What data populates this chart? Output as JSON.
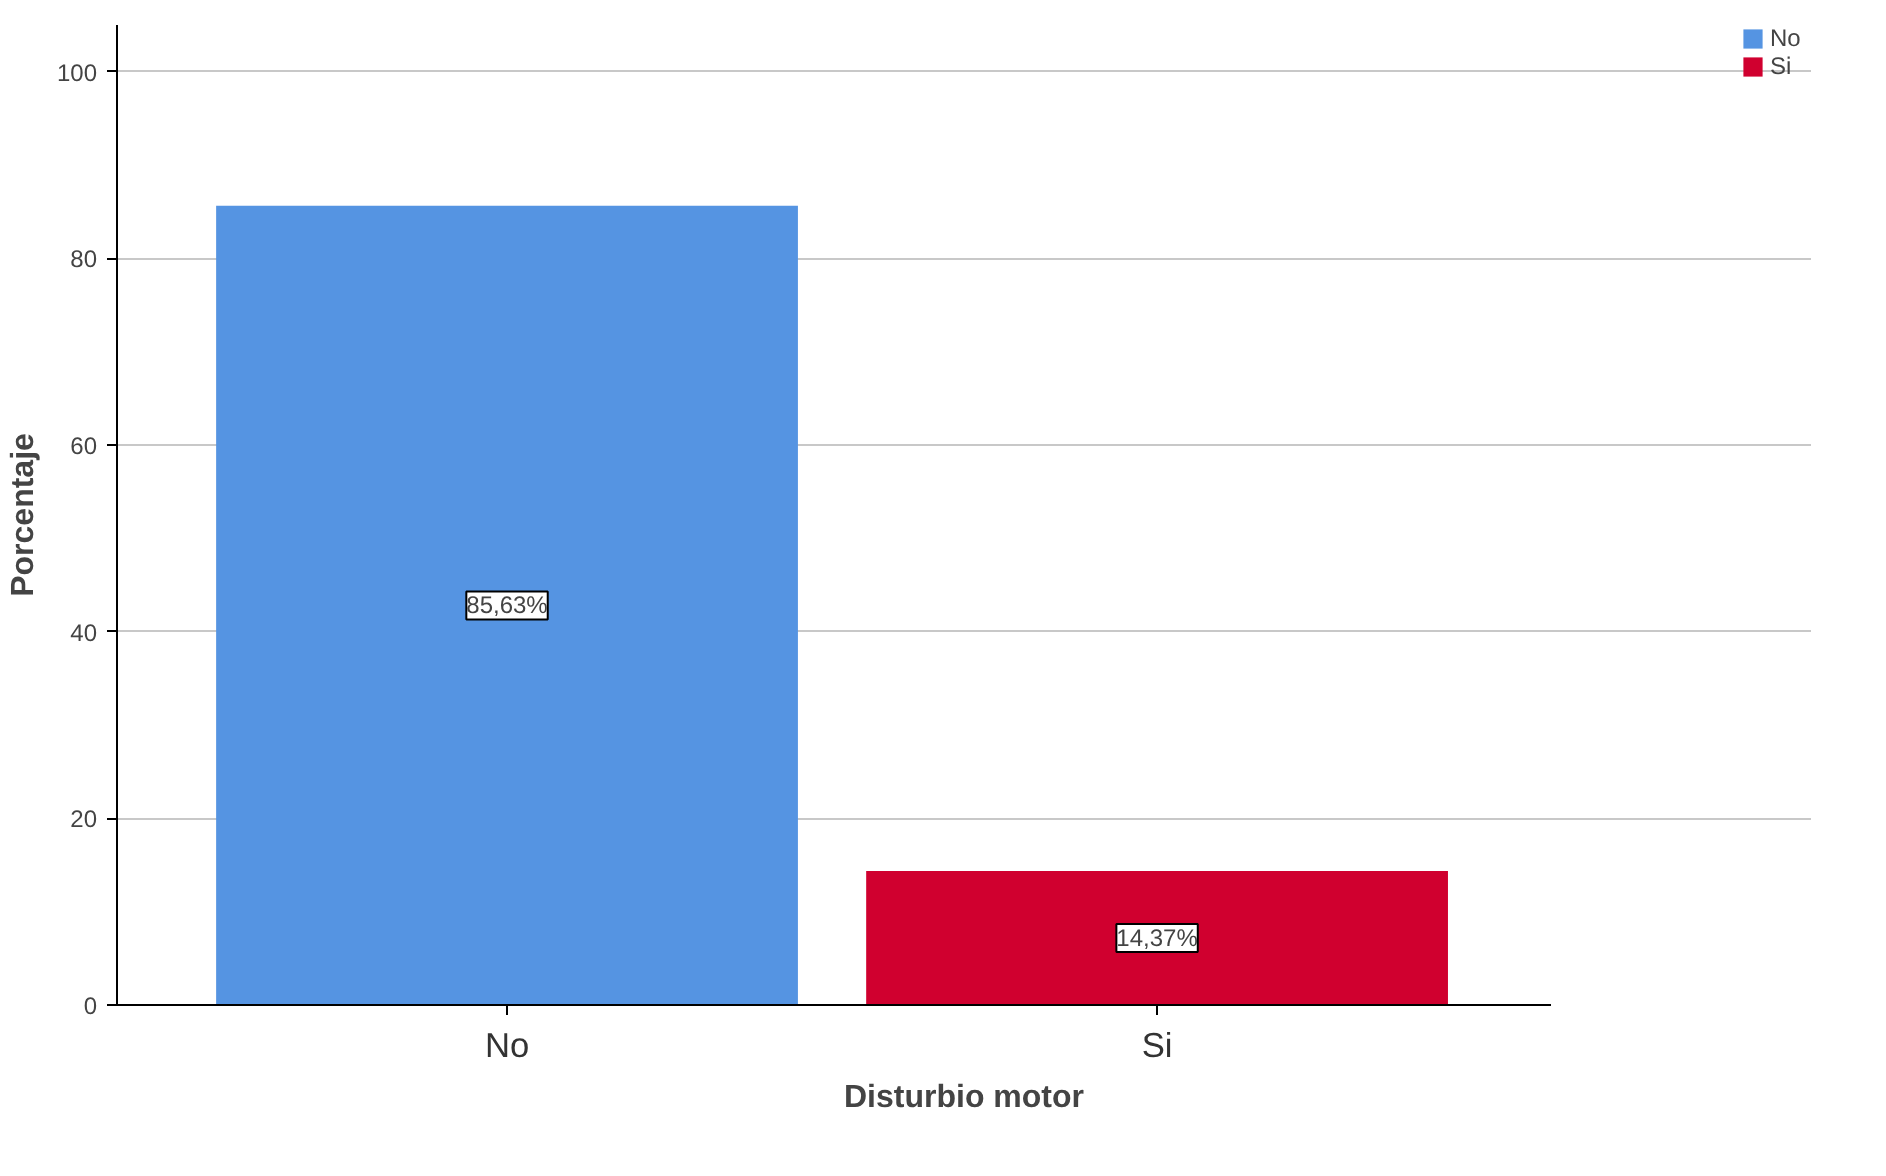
{
  "chart_data": {
    "type": "bar",
    "xlabel": "Disturbio motor",
    "ylabel": "Porcentaje",
    "categories": [
      "No",
      "Si"
    ],
    "stacked": true,
    "series": [
      {
        "name": "No",
        "color": "#5594e2",
        "values": [
          85.63,
          null
        ],
        "value_labels": [
          "85,63%",
          null
        ]
      },
      {
        "name": "Si",
        "color": "#d0002f",
        "values": [
          null,
          14.37
        ],
        "value_labels": [
          null,
          "14,37%"
        ]
      }
    ],
    "ylim": [
      0,
      105
    ],
    "yticks": [
      0,
      20,
      40,
      60,
      80,
      100
    ],
    "grid": "y",
    "legend": "top right"
  }
}
